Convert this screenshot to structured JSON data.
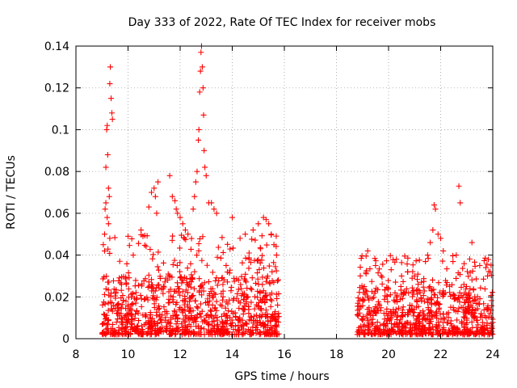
{
  "chart_data": {
    "type": "scatter",
    "title": "Day 333 of 2022, Rate Of TEC Index for receiver mobs",
    "xlabel": "GPS time / hours",
    "ylabel": "ROTI / TECUs",
    "xlim": [
      8,
      24
    ],
    "ylim": [
      0,
      0.14
    ],
    "x_ticks": [
      8,
      10,
      12,
      14,
      16,
      18,
      20,
      22,
      24
    ],
    "x_tick_labels": [
      "8",
      "10",
      "12",
      "14",
      "16",
      "18",
      "20",
      "22",
      "24"
    ],
    "y_ticks": [
      0,
      0.02,
      0.04,
      0.06,
      0.08,
      0.1,
      0.12,
      0.14
    ],
    "y_tick_labels": [
      "0",
      "0.02",
      "0.04",
      "0.06",
      "0.08",
      "0.1",
      "0.12",
      "0.14"
    ],
    "grid": true,
    "marker": "+",
    "color": "#ff0000",
    "series": [
      {
        "name": "ROTI",
        "points": [
          [
            9.05,
            0.045
          ],
          [
            9.1,
            0.05
          ],
          [
            9.12,
            0.062
          ],
          [
            9.15,
            0.082
          ],
          [
            9.18,
            0.1
          ],
          [
            9.2,
            0.102
          ],
          [
            9.22,
            0.088
          ],
          [
            9.25,
            0.072
          ],
          [
            9.28,
            0.068
          ],
          [
            9.3,
            0.122
          ],
          [
            9.32,
            0.13
          ],
          [
            9.35,
            0.115
          ],
          [
            9.38,
            0.108
          ],
          [
            9.4,
            0.105
          ],
          [
            9.15,
            0.065
          ],
          [
            9.2,
            0.058
          ],
          [
            9.25,
            0.055
          ],
          [
            9.1,
            0.042
          ],
          [
            9.3,
            0.048
          ],
          [
            10.0,
            0.049
          ],
          [
            10.2,
            0.04
          ],
          [
            10.5,
            0.052
          ],
          [
            10.8,
            0.063
          ],
          [
            10.9,
            0.07
          ],
          [
            11.0,
            0.072
          ],
          [
            11.05,
            0.068
          ],
          [
            11.1,
            0.06
          ],
          [
            11.15,
            0.075
          ],
          [
            11.6,
            0.078
          ],
          [
            11.7,
            0.068
          ],
          [
            11.8,
            0.066
          ],
          [
            11.85,
            0.062
          ],
          [
            11.9,
            0.06
          ],
          [
            12.0,
            0.058
          ],
          [
            12.1,
            0.055
          ],
          [
            12.2,
            0.052
          ],
          [
            12.3,
            0.05
          ],
          [
            12.5,
            0.062
          ],
          [
            12.55,
            0.068
          ],
          [
            12.6,
            0.075
          ],
          [
            12.65,
            0.08
          ],
          [
            12.7,
            0.095
          ],
          [
            12.72,
            0.1
          ],
          [
            12.75,
            0.118
          ],
          [
            12.78,
            0.128
          ],
          [
            12.8,
            0.137
          ],
          [
            12.82,
            0.14
          ],
          [
            12.85,
            0.13
          ],
          [
            12.88,
            0.12
          ],
          [
            12.9,
            0.107
          ],
          [
            12.92,
            0.09
          ],
          [
            12.95,
            0.082
          ],
          [
            13.0,
            0.078
          ],
          [
            13.1,
            0.065
          ],
          [
            13.2,
            0.065
          ],
          [
            13.3,
            0.062
          ],
          [
            13.4,
            0.06
          ],
          [
            14.0,
            0.058
          ],
          [
            14.3,
            0.048
          ],
          [
            14.5,
            0.05
          ],
          [
            14.8,
            0.052
          ],
          [
            15.0,
            0.055
          ],
          [
            15.2,
            0.058
          ],
          [
            15.3,
            0.057
          ],
          [
            15.4,
            0.055
          ],
          [
            15.5,
            0.05
          ],
          [
            15.6,
            0.045
          ],
          [
            15.7,
            0.04
          ],
          [
            19.2,
            0.042
          ],
          [
            19.5,
            0.035
          ],
          [
            20.1,
            0.033
          ],
          [
            20.3,
            0.038
          ],
          [
            20.5,
            0.03
          ],
          [
            21.0,
            0.03
          ],
          [
            21.5,
            0.04
          ],
          [
            21.6,
            0.046
          ],
          [
            21.7,
            0.052
          ],
          [
            21.75,
            0.064
          ],
          [
            21.8,
            0.062
          ],
          [
            21.9,
            0.05
          ],
          [
            22.0,
            0.048
          ],
          [
            22.1,
            0.042
          ],
          [
            22.6,
            0.04
          ],
          [
            22.7,
            0.073
          ],
          [
            22.75,
            0.065
          ],
          [
            23.2,
            0.046
          ],
          [
            23.5,
            0.035
          ],
          [
            23.8,
            0.03
          ],
          [
            23.9,
            0.032
          ]
        ]
      }
    ],
    "band_segments": [
      {
        "x_start": 9.0,
        "x_end": 15.8,
        "base_low": 0.002,
        "base_high": 0.03,
        "peak": 0.05
      },
      {
        "x_start": 18.8,
        "x_end": 24.0,
        "base_low": 0.002,
        "base_high": 0.025,
        "peak": 0.04
      }
    ]
  }
}
